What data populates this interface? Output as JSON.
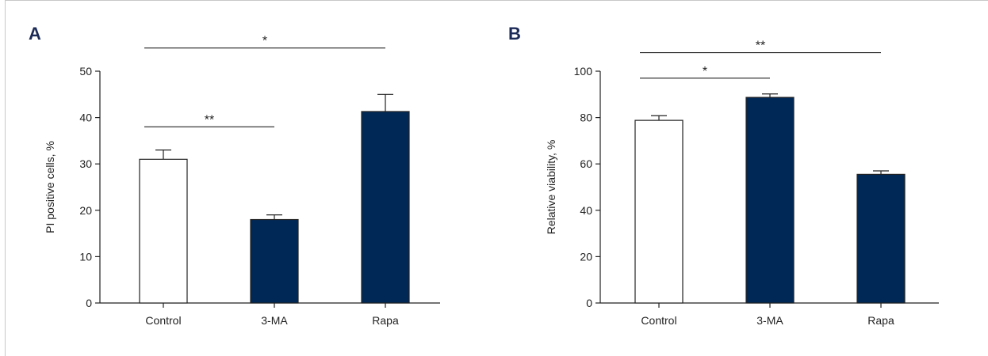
{
  "chart_data": [
    {
      "type": "bar",
      "panel_label": "A",
      "title": "",
      "xlabel": "",
      "ylabel": "PI positive cells, %",
      "ylim": [
        0,
        50
      ],
      "yticks": [
        0,
        10,
        20,
        30,
        40,
        50
      ],
      "categories": [
        "Control",
        "3-MA",
        "Rapa"
      ],
      "values": [
        31,
        18,
        41.3
      ],
      "errors": [
        2,
        1,
        3.7
      ],
      "bar_colors": [
        "#ffffff",
        "#002856",
        "#002856"
      ],
      "significance": [
        {
          "from": 0,
          "to": 2,
          "label": "*",
          "level": 55
        },
        {
          "from": 0,
          "to": 1,
          "label": "**",
          "level": 38
        }
      ]
    },
    {
      "type": "bar",
      "panel_label": "B",
      "title": "",
      "xlabel": "",
      "ylabel": "Relative viability, %",
      "ylim": [
        0,
        100
      ],
      "yticks": [
        0,
        20,
        40,
        60,
        80,
        100
      ],
      "categories": [
        "Control",
        "3-MA",
        "Rapa"
      ],
      "values": [
        78.8,
        88.7,
        55.5
      ],
      "errors": [
        2,
        1.5,
        1.5
      ],
      "bar_colors": [
        "#ffffff",
        "#002856",
        "#002856"
      ],
      "significance": [
        {
          "from": 0,
          "to": 1,
          "label": "*",
          "level": 97
        },
        {
          "from": 0,
          "to": 2,
          "label": "**",
          "level": 108
        }
      ]
    }
  ]
}
